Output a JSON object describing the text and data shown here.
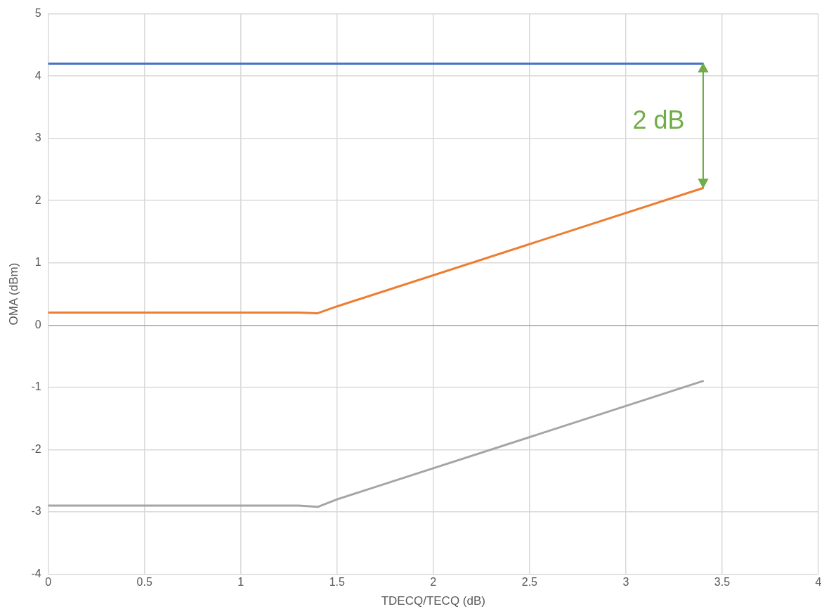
{
  "chart_data": {
    "type": "line",
    "xlabel": "TDECQ/TECQ (dB)",
    "ylabel": "OMA (dBm)",
    "xlim": [
      0,
      4
    ],
    "xticks": [
      0,
      0.5,
      1,
      1.5,
      2,
      2.5,
      3,
      3.5,
      4
    ],
    "ylim": [
      -4,
      5
    ],
    "yticks": [
      -4,
      -3,
      -2,
      -1,
      0,
      1,
      2,
      3,
      4,
      5
    ],
    "grid": true,
    "legend": false,
    "marker": "none",
    "line_style": "solid",
    "series": [
      {
        "color": "#4472c4",
        "x": [
          0,
          3.4
        ],
        "values": [
          4.2,
          4.2
        ]
      },
      {
        "color": "#ed7d31",
        "x": [
          0,
          1.3,
          1.4,
          1.5,
          3.4
        ],
        "values": [
          0.2,
          0.2,
          0.19,
          0.3,
          2.2
        ]
      },
      {
        "color": "#a5a5a5",
        "x": [
          0,
          1.3,
          1.4,
          1.5,
          3.4
        ],
        "values": [
          -2.9,
          -2.9,
          -2.92,
          -2.8,
          -0.9
        ]
      }
    ],
    "annotations": [
      "2 dB"
    ]
  }
}
